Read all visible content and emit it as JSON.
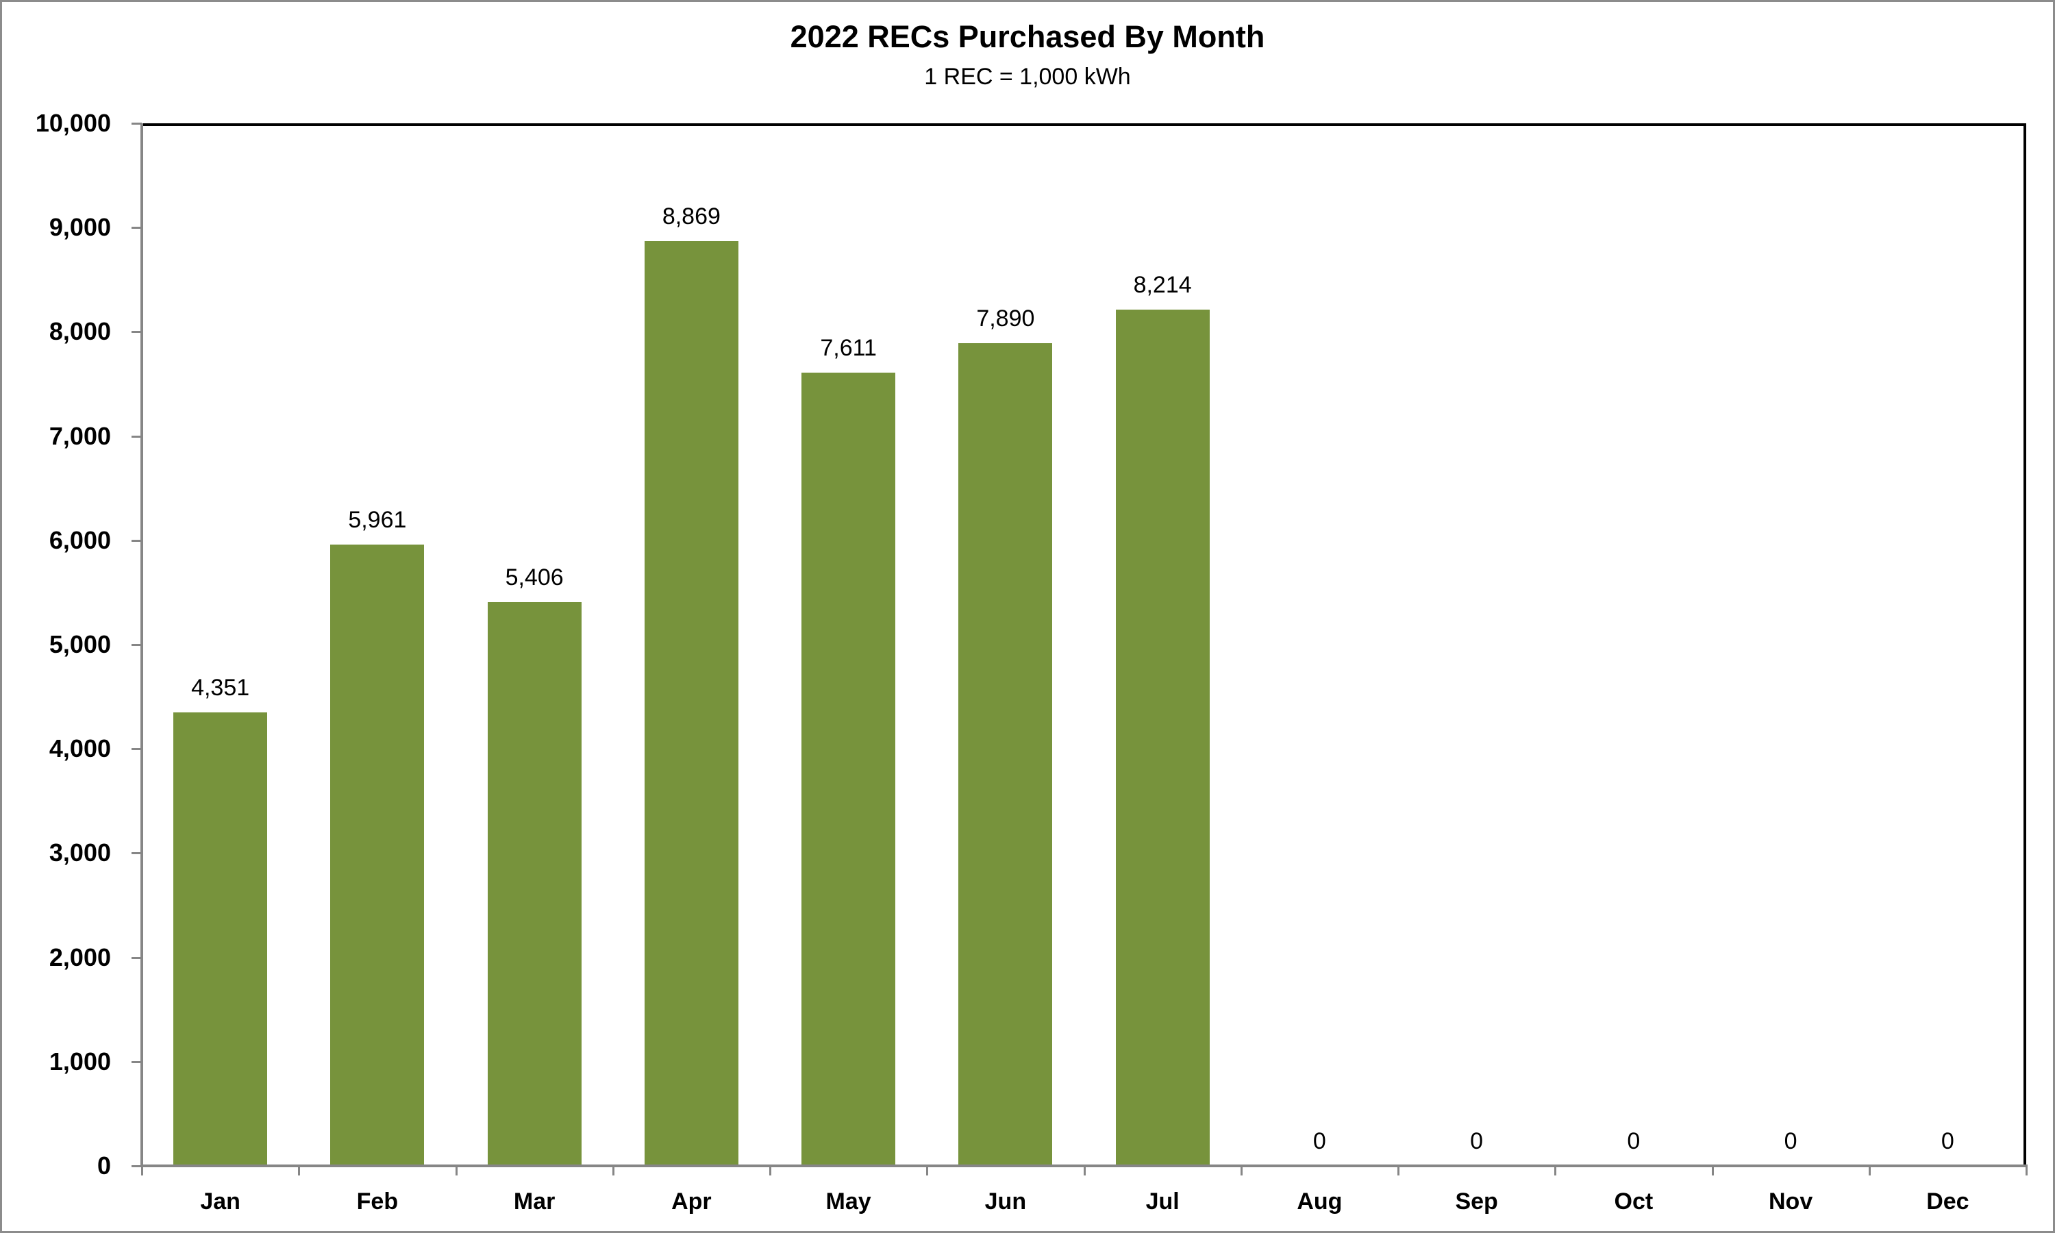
{
  "chart": {
    "title": "2022 RECs Purchased By Month",
    "subtitle": "1 REC = 1,000 kWh",
    "bar_color": "#77933C",
    "y_tick_labels": [
      "0",
      "1,000",
      "2,000",
      "3,000",
      "4,000",
      "5,000",
      "6,000",
      "7,000",
      "8,000",
      "9,000",
      "10,000"
    ],
    "months": [
      "Jan",
      "Feb",
      "Mar",
      "Apr",
      "May",
      "Jun",
      "Jul",
      "Aug",
      "Sep",
      "Oct",
      "Nov",
      "Dec"
    ],
    "value_labels": [
      "4,351",
      "5,961",
      "5,406",
      "8,869",
      "7,611",
      "7,890",
      "8,214",
      "0",
      "0",
      "0",
      "0",
      "0"
    ]
  },
  "chart_data": {
    "type": "bar",
    "title": "2022 RECs Purchased By Month",
    "subtitle": "1 REC = 1,000 kWh",
    "xlabel": "",
    "ylabel": "",
    "categories": [
      "Jan",
      "Feb",
      "Mar",
      "Apr",
      "May",
      "Jun",
      "Jul",
      "Aug",
      "Sep",
      "Oct",
      "Nov",
      "Dec"
    ],
    "values": [
      4351,
      5961,
      5406,
      8869,
      7611,
      7890,
      8214,
      0,
      0,
      0,
      0,
      0
    ],
    "ylim": [
      0,
      10000
    ],
    "y_ticks": [
      0,
      1000,
      2000,
      3000,
      4000,
      5000,
      6000,
      7000,
      8000,
      9000,
      10000
    ],
    "grid": false,
    "legend": null,
    "data_labels": true,
    "series_color": "#77933C"
  }
}
